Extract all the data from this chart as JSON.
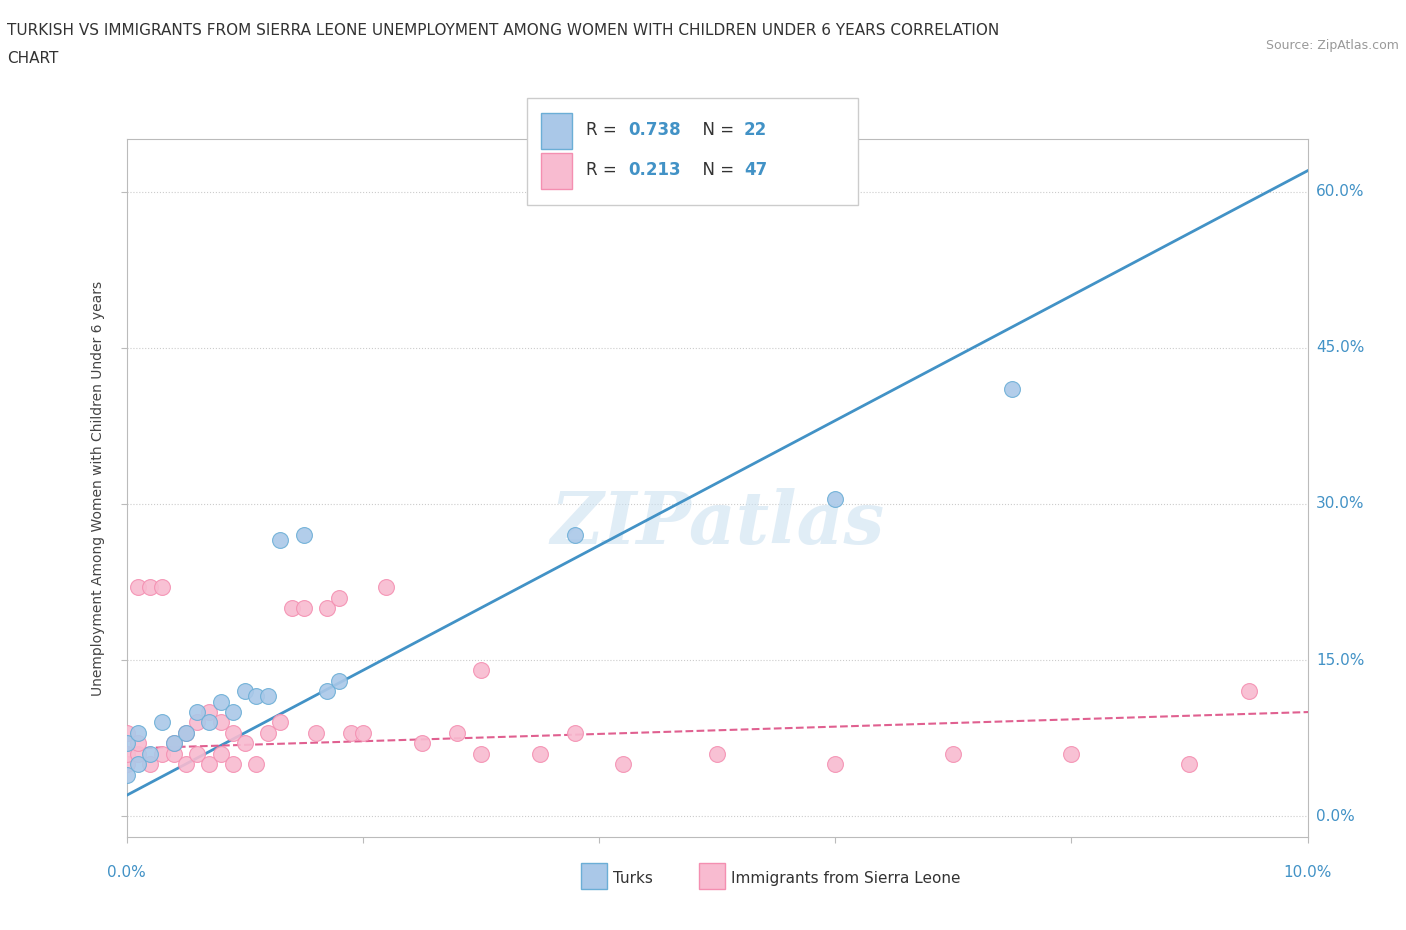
{
  "title_line1": "TURKISH VS IMMIGRANTS FROM SIERRA LEONE UNEMPLOYMENT AMONG WOMEN WITH CHILDREN UNDER 6 YEARS CORRELATION",
  "title_line2": "CHART",
  "source": "Source: ZipAtlas.com",
  "ylabel": "Unemployment Among Women with Children Under 6 years",
  "xlim": [
    0.0,
    0.1
  ],
  "ylim": [
    -0.02,
    0.65
  ],
  "yticks": [
    0.0,
    0.15,
    0.3,
    0.45,
    0.6
  ],
  "ytick_labels": [
    "0.0%",
    "15.0%",
    "30.0%",
    "45.0%",
    "60.0%"
  ],
  "xticks": [
    0.0,
    0.02,
    0.04,
    0.06,
    0.08,
    0.1
  ],
  "turks_color_edge": "#6baed6",
  "turks_color_face": "#aac8e8",
  "sierra_color_edge": "#f48fb1",
  "sierra_color_face": "#f8bbd0",
  "line_turks_color": "#4292c6",
  "line_sierra_color": "#e06090",
  "watermark": "ZIPatlas",
  "turks_scatter_x": [
    0.0,
    0.0,
    0.001,
    0.001,
    0.002,
    0.003,
    0.004,
    0.005,
    0.006,
    0.007,
    0.008,
    0.009,
    0.01,
    0.011,
    0.012,
    0.013,
    0.015,
    0.017,
    0.018,
    0.038,
    0.06,
    0.075
  ],
  "turks_scatter_y": [
    0.04,
    0.07,
    0.05,
    0.08,
    0.06,
    0.09,
    0.07,
    0.08,
    0.1,
    0.09,
    0.11,
    0.1,
    0.12,
    0.115,
    0.115,
    0.265,
    0.27,
    0.12,
    0.13,
    0.27,
    0.305,
    0.41
  ],
  "sierra_scatter_x": [
    0.0,
    0.0,
    0.0,
    0.001,
    0.001,
    0.001,
    0.002,
    0.002,
    0.003,
    0.003,
    0.004,
    0.004,
    0.005,
    0.005,
    0.006,
    0.006,
    0.007,
    0.007,
    0.008,
    0.008,
    0.009,
    0.009,
    0.01,
    0.011,
    0.012,
    0.013,
    0.014,
    0.015,
    0.016,
    0.017,
    0.018,
    0.019,
    0.02,
    0.022,
    0.025,
    0.028,
    0.03,
    0.035,
    0.038,
    0.042,
    0.05,
    0.06,
    0.07,
    0.08,
    0.09,
    0.095,
    0.03
  ],
  "sierra_scatter_y": [
    0.05,
    0.06,
    0.08,
    0.06,
    0.07,
    0.22,
    0.05,
    0.22,
    0.06,
    0.22,
    0.06,
    0.07,
    0.05,
    0.08,
    0.06,
    0.09,
    0.05,
    0.1,
    0.06,
    0.09,
    0.05,
    0.08,
    0.07,
    0.05,
    0.08,
    0.09,
    0.2,
    0.2,
    0.08,
    0.2,
    0.21,
    0.08,
    0.08,
    0.22,
    0.07,
    0.08,
    0.06,
    0.06,
    0.08,
    0.05,
    0.06,
    0.05,
    0.06,
    0.06,
    0.05,
    0.12,
    0.14
  ],
  "turks_R": "0.738",
  "turks_N": "22",
  "sierra_R": "0.213",
  "sierra_N": "47"
}
